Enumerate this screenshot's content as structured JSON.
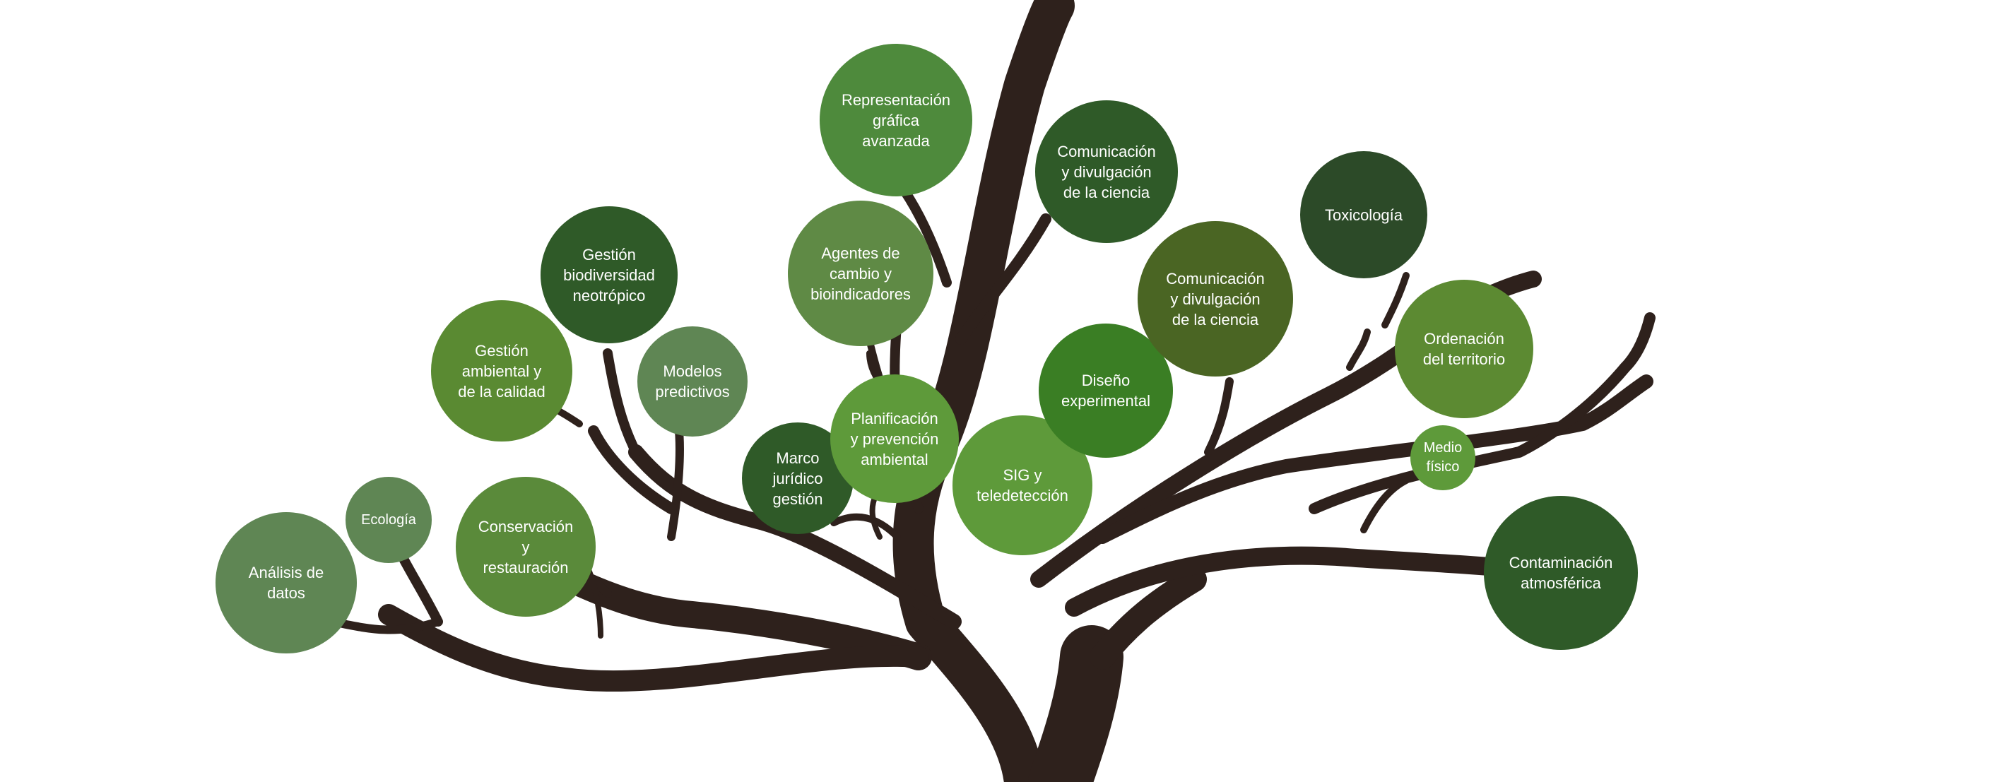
{
  "colors": {
    "trunk": "#2e211c",
    "background": "#ffffff",
    "label_text": "#ffffff"
  },
  "nodes": [
    {
      "id": "analisis-de-datos",
      "label": "Análisis de\ndatos",
      "color": "#5f8654"
    },
    {
      "id": "ecologia",
      "label": "Ecología",
      "color": "#5f8654"
    },
    {
      "id": "conservacion-restauracion",
      "label": "Conservación\ny\nrestauración",
      "color": "#5a8a3a"
    },
    {
      "id": "gestion-ambiental-calidad",
      "label": "Gestión\nambiental y\nde la calidad",
      "color": "#5a8a32"
    },
    {
      "id": "gestion-biodiversidad",
      "label": "Gestión\nbiodiversidad\nneotrópico",
      "color": "#2f5a28"
    },
    {
      "id": "modelos-predictivos",
      "label": "Modelos\npredictivos",
      "color": "#5f8654"
    },
    {
      "id": "marco-juridico",
      "label": "Marco\njurídico\ngestión",
      "color": "#2f5a28"
    },
    {
      "id": "agentes-de-cambio",
      "label": "Agentes de\ncambio y\nbioindicadores",
      "color": "#5f8a45"
    },
    {
      "id": "representacion-grafica",
      "label": "Representación\ngráfica\navanzada",
      "color": "#4e8a3c"
    },
    {
      "id": "planificacion-prevencion",
      "label": "Planificación\ny prevención\nambiental",
      "color": "#5e9a3a"
    },
    {
      "id": "sig-teledeteccion",
      "label": "SIG y\nteledetección",
      "color": "#5e9a3a"
    },
    {
      "id": "comunicacion-divulgacion-1",
      "label": "Comunicación\ny divulgación\nde la ciencia",
      "color": "#2f5a28"
    },
    {
      "id": "diseno-experimental",
      "label": "Diseño\nexperimental",
      "color": "#3a7e24"
    },
    {
      "id": "comunicacion-divulgacion-2",
      "label": "Comunicación\ny divulgación\nde la ciencia",
      "color": "#4a6523"
    },
    {
      "id": "toxicologia",
      "label": "Toxicología",
      "color": "#2c4a28"
    },
    {
      "id": "ordenacion-territorio",
      "label": "Ordenación\ndel territorio",
      "color": "#5c8a32"
    },
    {
      "id": "medio-fisico",
      "label": "Medio\nfísico",
      "color": "#5e9a3a"
    },
    {
      "id": "contaminacion-atmosferica",
      "label": "Contaminación\natmosférica",
      "color": "#2f5a28"
    }
  ]
}
